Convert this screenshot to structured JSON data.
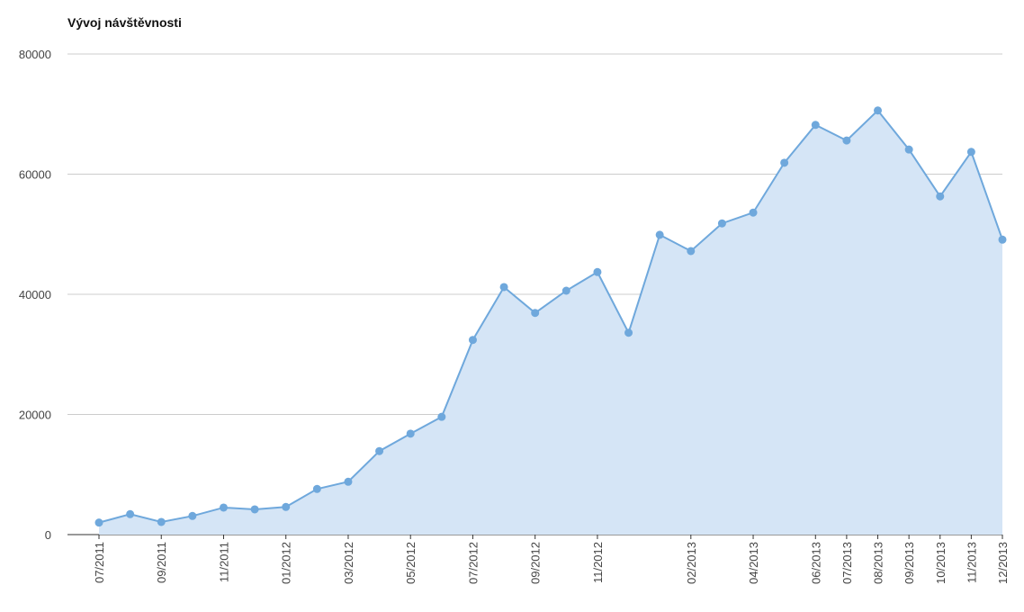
{
  "chart_data": {
    "type": "area",
    "title": "Vývoj návštěvnosti",
    "categories": [
      "07/2011",
      null,
      "09/2011",
      null,
      "11/2011",
      null,
      "01/2012",
      null,
      "03/2012",
      null,
      "05/2012",
      null,
      "07/2012",
      null,
      "09/2012",
      null,
      "11/2012",
      null,
      null,
      "02/2013",
      null,
      "04/2013",
      null,
      "06/2013",
      "07/2013",
      "08/2013",
      "09/2013",
      "10/2013",
      "11/2013",
      "12/2013"
    ],
    "series": [
      {
        "color": "#6fa8dc",
        "fill": "#d5e5f6",
        "values": [
          2000,
          3400,
          2100,
          3100,
          4500,
          4200,
          4600,
          7600,
          8800,
          13900,
          16800,
          19600,
          32400,
          41200,
          36900,
          40600,
          43700,
          33600,
          49900,
          47200,
          51800,
          53600,
          61900,
          68200,
          65600,
          70600,
          64100,
          56300,
          63700,
          49100
        ]
      }
    ],
    "ylim": [
      0,
      80000
    ],
    "yticks": [
      0,
      20000,
      40000,
      60000,
      80000
    ],
    "grid": true
  }
}
